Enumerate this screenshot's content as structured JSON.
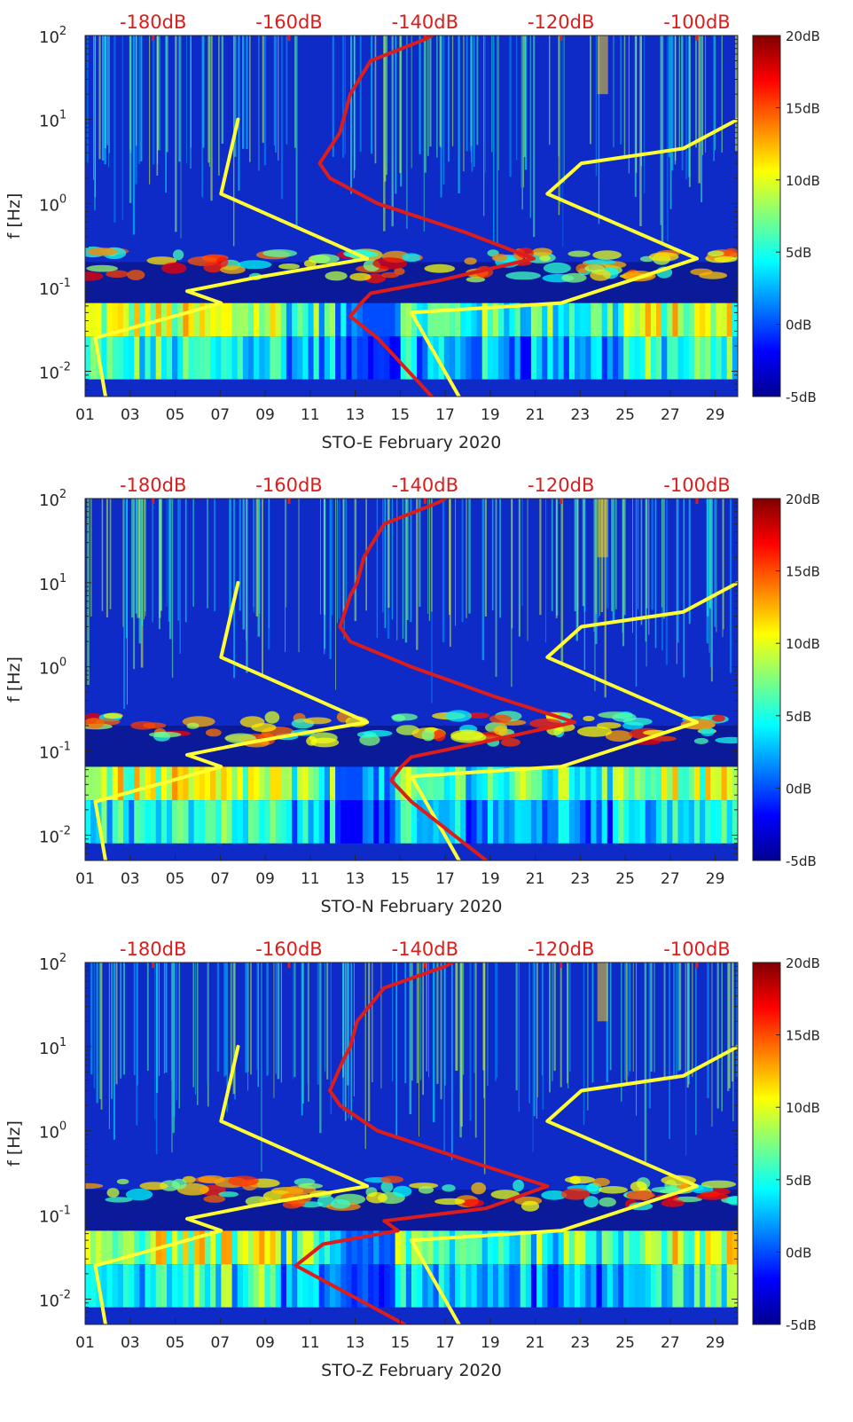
{
  "colorbar": {
    "min_db": -5,
    "max_db": 20,
    "tick_labels": [
      "20dB",
      "15dB",
      "10dB",
      "5dB",
      "0dB",
      "-5dB"
    ],
    "tick_values": [
      20,
      15,
      10,
      5,
      0,
      -5
    ],
    "colormap": "jet"
  },
  "top_axis": {
    "tick_labels": [
      "-180dB",
      "-160dB",
      "-140dB",
      "-120dB",
      "-100dB"
    ],
    "tick_values": [
      -180,
      -160,
      -140,
      -120,
      -100
    ],
    "color": "#dd1c1c"
  },
  "colors": {
    "model_line": "#ffff33",
    "psd_line": "#dd1c1c",
    "background": "#0b1aa6"
  },
  "chart_data": [
    {
      "type": "heatmap",
      "xlabel": "STO-E February 2020",
      "ylabel": "f [Hz]",
      "x_tick_labels": [
        "01",
        "03",
        "05",
        "07",
        "09",
        "11",
        "13",
        "15",
        "17",
        "19",
        "21",
        "23",
        "25",
        "27",
        "29"
      ],
      "x_tick_values": [
        1,
        3,
        5,
        7,
        9,
        11,
        13,
        15,
        17,
        19,
        21,
        23,
        25,
        27,
        29
      ],
      "xlim": [
        1,
        30
      ],
      "ylim": [
        0.005,
        100
      ],
      "y_scale": "log",
      "y_tick_labels": [
        {
          "base": "10",
          "exp": "-2"
        },
        {
          "base": "10",
          "exp": "-1"
        },
        {
          "base": "10",
          "exp": "0"
        },
        {
          "base": "10",
          "exp": "1"
        },
        {
          "base": "10",
          "exp": "2"
        }
      ],
      "y_tick_values": [
        0.01,
        0.1,
        1,
        10,
        100
      ],
      "overlay_series": [
        {
          "axis": "top_db",
          "color": "#ffff33",
          "points": [
            [
              -187,
              0.005
            ],
            [
              -188.5,
              0.025
            ],
            [
              -175,
              0.05
            ],
            [
              -170,
              0.065
            ],
            [
              -175,
              0.09
            ],
            [
              -165,
              0.13
            ],
            [
              -148.5,
              0.22
            ],
            [
              -170,
              1.3
            ],
            [
              -167.5,
              10
            ]
          ]
        },
        {
          "axis": "top_db",
          "color": "#ffff33",
          "points": [
            [
              -135,
              0.005
            ],
            [
              -142,
              0.05
            ],
            [
              -120,
              0.065
            ],
            [
              -100,
              0.22
            ],
            [
              -122,
              1.3
            ],
            [
              -117,
              3
            ],
            [
              -102,
              4.5
            ],
            [
              -94,
              10
            ]
          ]
        },
        {
          "axis": "top_db",
          "color": "#dd1c1c",
          "points": [
            [
              -139,
              0.005
            ],
            [
              -147,
              0.025
            ],
            [
              -151,
              0.045
            ],
            [
              -149,
              0.07
            ],
            [
              -148,
              0.085
            ],
            [
              -138,
              0.12
            ],
            [
              -124,
              0.22
            ],
            [
              -134,
              0.45
            ],
            [
              -147,
              1
            ],
            [
              -154,
              2
            ],
            [
              -155.5,
              3
            ],
            [
              -152.5,
              7
            ],
            [
              -152,
              10
            ],
            [
              -151,
              20
            ],
            [
              -148,
              50
            ],
            [
              -140,
              90
            ],
            [
              -139,
              100
            ]
          ]
        }
      ]
    },
    {
      "type": "heatmap",
      "xlabel": "STO-N February 2020",
      "ylabel": "f [Hz]",
      "x_tick_labels": [
        "01",
        "03",
        "05",
        "07",
        "09",
        "11",
        "13",
        "15",
        "17",
        "19",
        "21",
        "23",
        "25",
        "27",
        "29"
      ],
      "x_tick_values": [
        1,
        3,
        5,
        7,
        9,
        11,
        13,
        15,
        17,
        19,
        21,
        23,
        25,
        27,
        29
      ],
      "xlim": [
        1,
        30
      ],
      "ylim": [
        0.005,
        100
      ],
      "y_scale": "log",
      "y_tick_labels": [
        {
          "base": "10",
          "exp": "-2"
        },
        {
          "base": "10",
          "exp": "-1"
        },
        {
          "base": "10",
          "exp": "0"
        },
        {
          "base": "10",
          "exp": "1"
        },
        {
          "base": "10",
          "exp": "2"
        }
      ],
      "y_tick_values": [
        0.01,
        0.1,
        1,
        10,
        100
      ],
      "overlay_series": [
        {
          "axis": "top_db",
          "color": "#ffff33",
          "points": [
            [
              -187,
              0.005
            ],
            [
              -188.5,
              0.025
            ],
            [
              -175,
              0.05
            ],
            [
              -170,
              0.065
            ],
            [
              -175,
              0.09
            ],
            [
              -165,
              0.13
            ],
            [
              -148.5,
              0.22
            ],
            [
              -170,
              1.3
            ],
            [
              -167.5,
              10
            ]
          ]
        },
        {
          "axis": "top_db",
          "color": "#ffff33",
          "points": [
            [
              -135,
              0.005
            ],
            [
              -142,
              0.05
            ],
            [
              -120,
              0.065
            ],
            [
              -100,
              0.22
            ],
            [
              -122,
              1.3
            ],
            [
              -117,
              3
            ],
            [
              -102,
              4.5
            ],
            [
              -94,
              10
            ]
          ]
        },
        {
          "axis": "top_db",
          "color": "#dd1c1c",
          "points": [
            [
              -131,
              0.005
            ],
            [
              -142,
              0.025
            ],
            [
              -145,
              0.045
            ],
            [
              -143.5,
              0.065
            ],
            [
              -142,
              0.085
            ],
            [
              -133,
              0.12
            ],
            [
              -118,
              0.22
            ],
            [
              -130,
              0.45
            ],
            [
              -142,
              1
            ],
            [
              -151,
              2
            ],
            [
              -152.5,
              3
            ],
            [
              -151,
              7
            ],
            [
              -150,
              10
            ],
            [
              -149,
              20
            ],
            [
              -146,
              50
            ],
            [
              -138,
              90
            ],
            [
              -137,
              100
            ]
          ]
        }
      ]
    },
    {
      "type": "heatmap",
      "xlabel": "STO-Z February 2020",
      "ylabel": "f [Hz]",
      "x_tick_labels": [
        "01",
        "03",
        "05",
        "07",
        "09",
        "11",
        "13",
        "15",
        "17",
        "19",
        "21",
        "23",
        "25",
        "27",
        "29"
      ],
      "x_tick_values": [
        1,
        3,
        5,
        7,
        9,
        11,
        13,
        15,
        17,
        19,
        21,
        23,
        25,
        27,
        29
      ],
      "xlim": [
        1,
        30
      ],
      "ylim": [
        0.005,
        100
      ],
      "y_scale": "log",
      "y_tick_labels": [
        {
          "base": "10",
          "exp": "-2"
        },
        {
          "base": "10",
          "exp": "-1"
        },
        {
          "base": "10",
          "exp": "0"
        },
        {
          "base": "10",
          "exp": "1"
        },
        {
          "base": "10",
          "exp": "2"
        }
      ],
      "y_tick_values": [
        0.01,
        0.1,
        1,
        10,
        100
      ],
      "overlay_series": [
        {
          "axis": "top_db",
          "color": "#ffff33",
          "points": [
            [
              -187,
              0.005
            ],
            [
              -188.5,
              0.025
            ],
            [
              -175,
              0.05
            ],
            [
              -170,
              0.065
            ],
            [
              -175,
              0.09
            ],
            [
              -165,
              0.13
            ],
            [
              -148.5,
              0.22
            ],
            [
              -170,
              1.3
            ],
            [
              -167.5,
              10
            ]
          ]
        },
        {
          "axis": "top_db",
          "color": "#ffff33",
          "points": [
            [
              -135,
              0.005
            ],
            [
              -142,
              0.05
            ],
            [
              -120,
              0.065
            ],
            [
              -100,
              0.22
            ],
            [
              -122,
              1.3
            ],
            [
              -117,
              3
            ],
            [
              -102,
              4.5
            ],
            [
              -94,
              10
            ]
          ]
        },
        {
          "axis": "top_db",
          "color": "#dd1c1c",
          "points": [
            [
              -143,
              0.005
            ],
            [
              -159,
              0.025
            ],
            [
              -155,
              0.045
            ],
            [
              -144,
              0.065
            ],
            [
              -146,
              0.085
            ],
            [
              -131,
              0.12
            ],
            [
              -122,
              0.22
            ],
            [
              -134,
              0.45
            ],
            [
              -147,
              1
            ],
            [
              -152.5,
              2
            ],
            [
              -154,
              3
            ],
            [
              -152,
              7
            ],
            [
              -151,
              10
            ],
            [
              -150,
              20
            ],
            [
              -146,
              50
            ],
            [
              -137,
              90
            ],
            [
              -136,
              100
            ]
          ]
        }
      ]
    }
  ]
}
